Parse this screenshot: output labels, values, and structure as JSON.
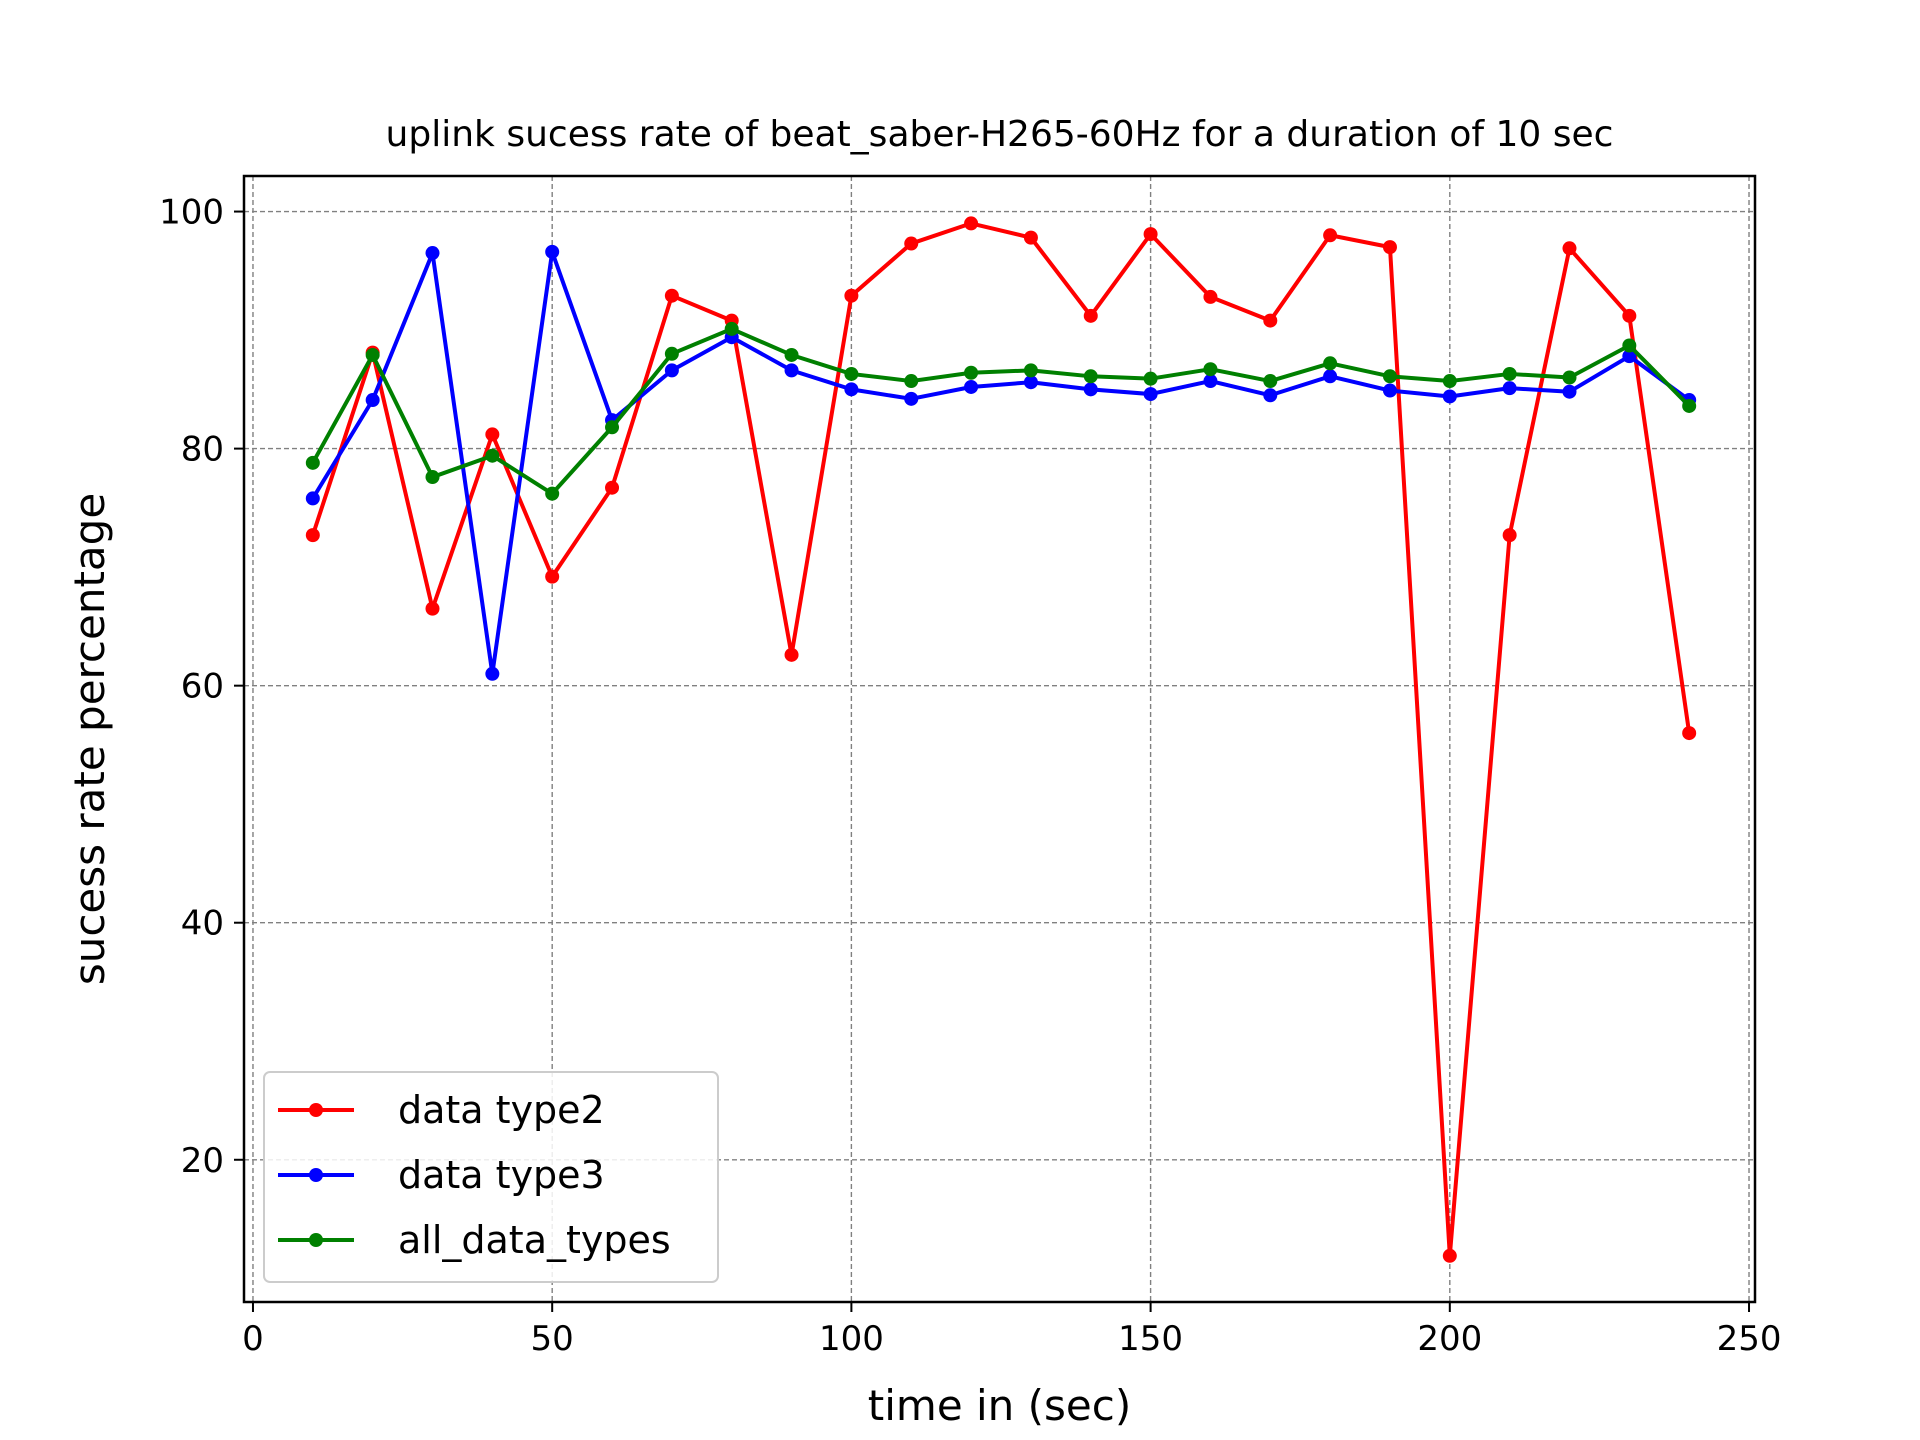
{
  "chart_data": {
    "type": "line",
    "title": "uplink sucess rate of beat_saber-H265-60Hz for a duration of 10 sec",
    "xlabel": "time in (sec)",
    "ylabel": "sucess rate percentage",
    "xlim": [
      -1.5,
      251
    ],
    "ylim": [
      8,
      103
    ],
    "xticks": [
      0,
      50,
      100,
      150,
      200,
      250
    ],
    "yticks": [
      20,
      40,
      60,
      80,
      100
    ],
    "grid": true,
    "legend_position": "lower-left",
    "x": [
      10,
      20,
      30,
      40,
      50,
      60,
      70,
      80,
      90,
      100,
      110,
      120,
      130,
      140,
      150,
      160,
      170,
      180,
      190,
      200,
      210,
      220,
      230,
      240
    ],
    "series": [
      {
        "name": "data type2",
        "color": "#ff0000",
        "values": [
          72.7,
          88.1,
          66.5,
          81.2,
          69.2,
          76.7,
          92.9,
          90.8,
          62.6,
          92.9,
          97.3,
          99.0,
          97.8,
          91.2,
          98.1,
          92.8,
          90.8,
          98.0,
          97.0,
          11.9,
          72.7,
          96.9,
          91.2,
          56.0
        ]
      },
      {
        "name": "data type3",
        "color": "#0000ff",
        "values": [
          75.8,
          84.1,
          96.5,
          61.0,
          96.6,
          82.4,
          86.6,
          89.4,
          86.6,
          85.0,
          84.2,
          85.2,
          85.6,
          85.0,
          84.6,
          85.7,
          84.5,
          86.1,
          84.9,
          84.4,
          85.1,
          84.8,
          87.8,
          84.1
        ]
      },
      {
        "name": "all_data_types",
        "color": "#008000",
        "values": [
          78.8,
          87.9,
          77.6,
          79.4,
          76.2,
          81.8,
          88.0,
          90.1,
          87.9,
          86.3,
          85.7,
          86.4,
          86.6,
          86.1,
          85.9,
          86.7,
          85.7,
          87.2,
          86.1,
          85.7,
          86.3,
          86.0,
          88.7,
          83.6
        ]
      }
    ]
  }
}
